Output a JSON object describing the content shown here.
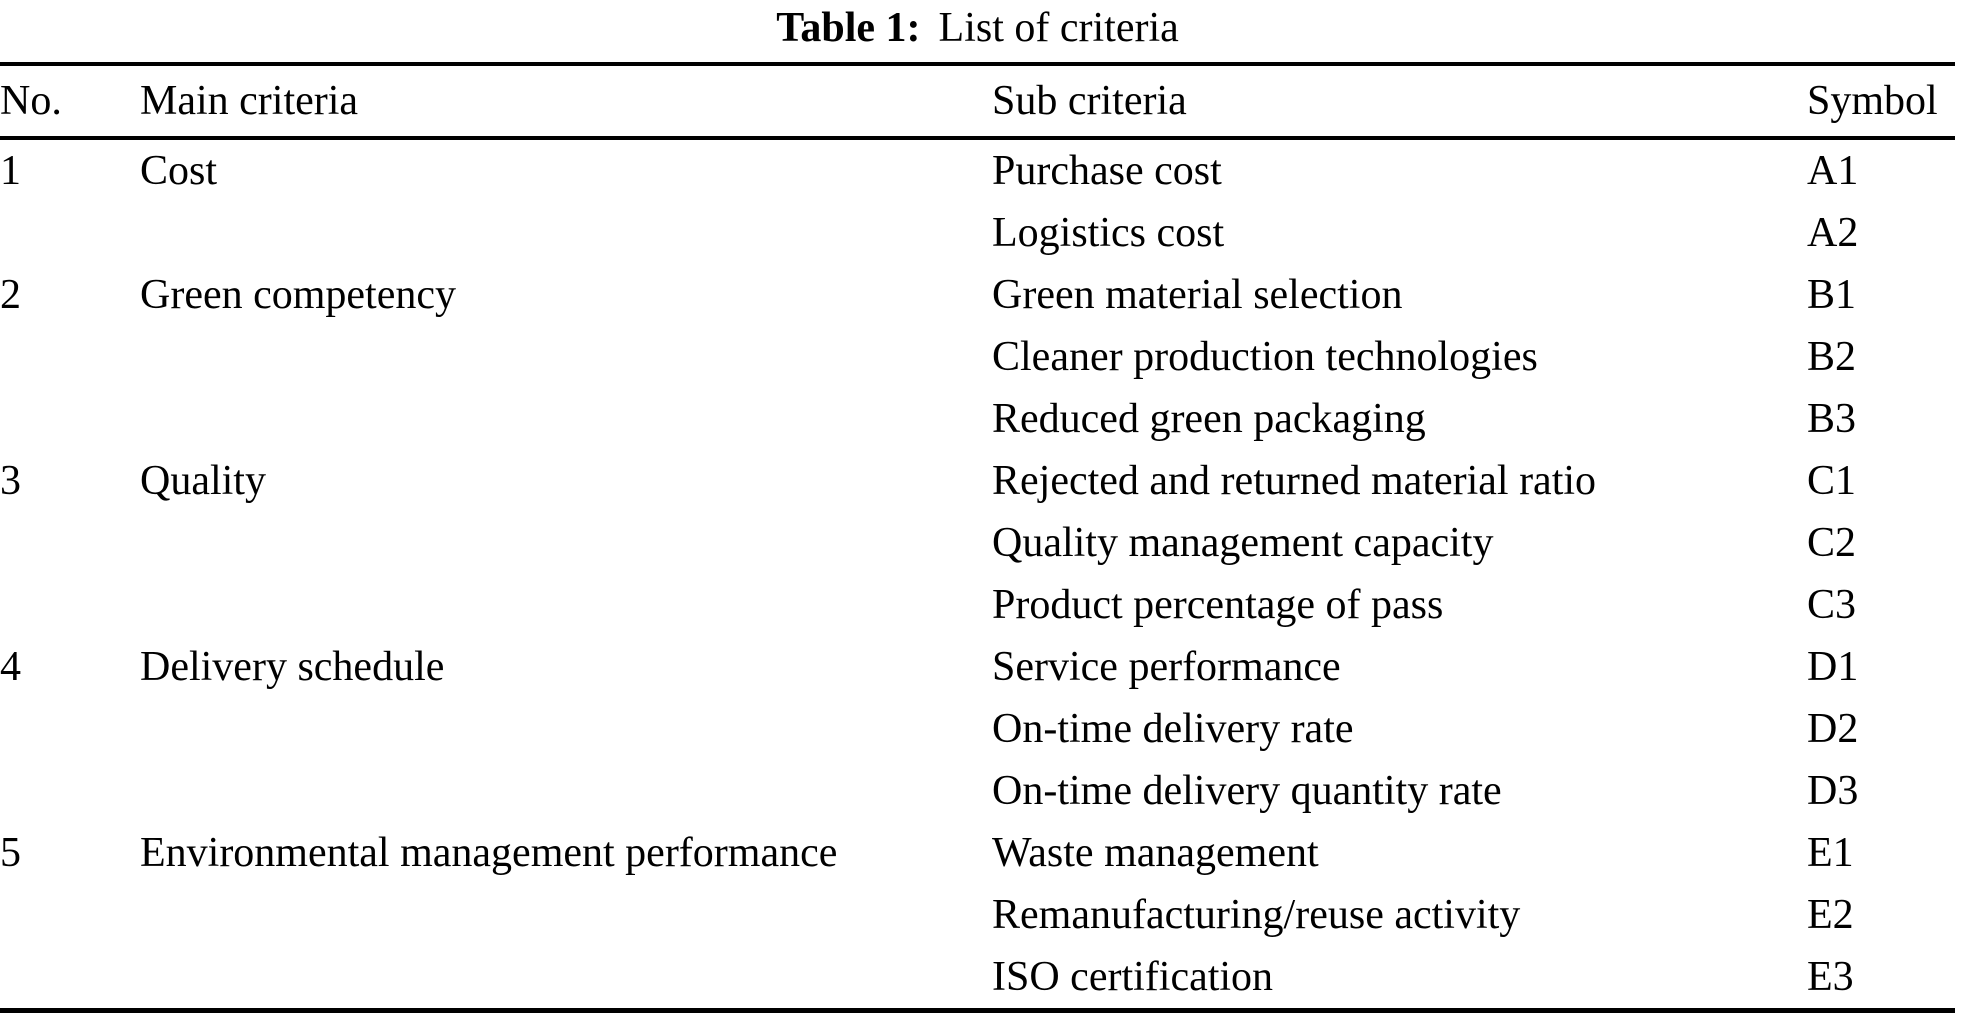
{
  "caption": {
    "label": "Table 1:",
    "text": "List of criteria"
  },
  "table": {
    "columns": {
      "no": "No.",
      "main": "Main criteria",
      "sub": "Sub criteria",
      "symbol": "Symbol"
    },
    "rows": [
      {
        "no": "1",
        "main": "Cost",
        "sub": "Purchase cost",
        "symbol": "A1"
      },
      {
        "no": "",
        "main": "",
        "sub": "Logistics cost",
        "symbol": "A2"
      },
      {
        "no": "2",
        "main": "Green competency",
        "sub": "Green material selection",
        "symbol": "B1"
      },
      {
        "no": "",
        "main": "",
        "sub": "Cleaner production technologies",
        "symbol": "B2"
      },
      {
        "no": "",
        "main": "",
        "sub": "Reduced green packaging",
        "symbol": "B3"
      },
      {
        "no": "3",
        "main": "Quality",
        "sub": "Rejected and returned material ratio",
        "symbol": "C1"
      },
      {
        "no": "",
        "main": "",
        "sub": "Quality management capacity",
        "symbol": "C2"
      },
      {
        "no": "",
        "main": "",
        "sub": "Product percentage of pass",
        "symbol": "C3"
      },
      {
        "no": "4",
        "main": "Delivery schedule",
        "sub": "Service performance",
        "symbol": "D1"
      },
      {
        "no": "",
        "main": "",
        "sub": "On-time delivery rate",
        "symbol": "D2"
      },
      {
        "no": "",
        "main": "",
        "sub": "On-time delivery quantity rate",
        "symbol": "D3"
      },
      {
        "no": "5",
        "main": "Environmental management performance",
        "sub": "Waste management",
        "symbol": "E1"
      },
      {
        "no": "",
        "main": "",
        "sub": "Remanufacturing/reuse activity",
        "symbol": "E2"
      },
      {
        "no": "",
        "main": "",
        "sub": "ISO certification",
        "symbol": "E3"
      }
    ]
  },
  "colors": {
    "text": "#000000",
    "background": "#ffffff",
    "rule": "#000000"
  }
}
